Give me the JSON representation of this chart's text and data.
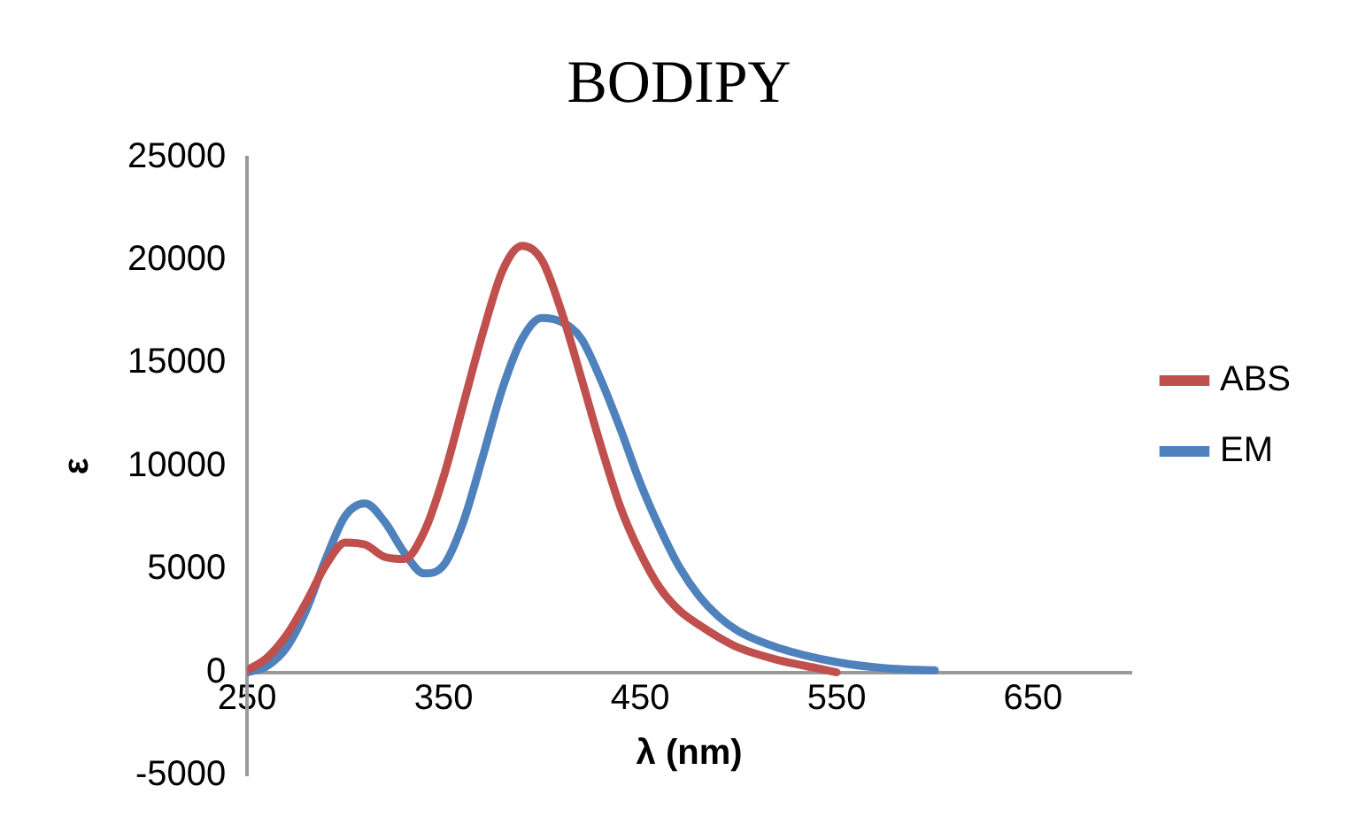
{
  "chart_data": {
    "type": "line",
    "title": "BODIPY",
    "xlabel": "λ (nm)",
    "ylabel": "ε",
    "xlim": [
      250,
      700
    ],
    "xticks": [
      250,
      350,
      450,
      550,
      650
    ],
    "ylim": [
      -5000,
      25000
    ],
    "yticks": [
      -5000,
      0,
      5000,
      10000,
      15000,
      20000,
      25000
    ],
    "grid": false,
    "legend": "right",
    "marker": "none",
    "line_style": "solid",
    "series": [
      {
        "name": "ABS",
        "color": "#c0504d",
        "x": [
          250,
          260,
          270,
          280,
          290,
          300,
          310,
          320,
          330,
          340,
          350,
          360,
          370,
          380,
          390,
          400,
          410,
          420,
          430,
          440,
          450,
          460,
          470,
          480,
          490,
          500,
          520,
          540,
          550
        ],
        "values": [
          100,
          700,
          1800,
          3400,
          5200,
          6300,
          6200,
          5600,
          5500,
          6800,
          9500,
          13000,
          16500,
          19500,
          20700,
          20000,
          17500,
          14300,
          11000,
          8000,
          5800,
          4100,
          3000,
          2300,
          1700,
          1200,
          600,
          200,
          0
        ]
      },
      {
        "name": "EM",
        "color": "#4f81bd",
        "x": [
          250,
          260,
          270,
          280,
          290,
          300,
          310,
          320,
          330,
          340,
          350,
          360,
          370,
          380,
          390,
          400,
          410,
          420,
          430,
          440,
          450,
          460,
          470,
          480,
          490,
          500,
          520,
          550,
          575,
          600
        ],
        "values": [
          0,
          300,
          1200,
          3000,
          5500,
          7600,
          8200,
          7300,
          5800,
          4800,
          5200,
          7300,
          10500,
          13800,
          16200,
          17200,
          17000,
          16200,
          14200,
          11800,
          9200,
          7000,
          5100,
          3700,
          2700,
          2000,
          1200,
          500,
          200,
          100
        ]
      }
    ]
  }
}
